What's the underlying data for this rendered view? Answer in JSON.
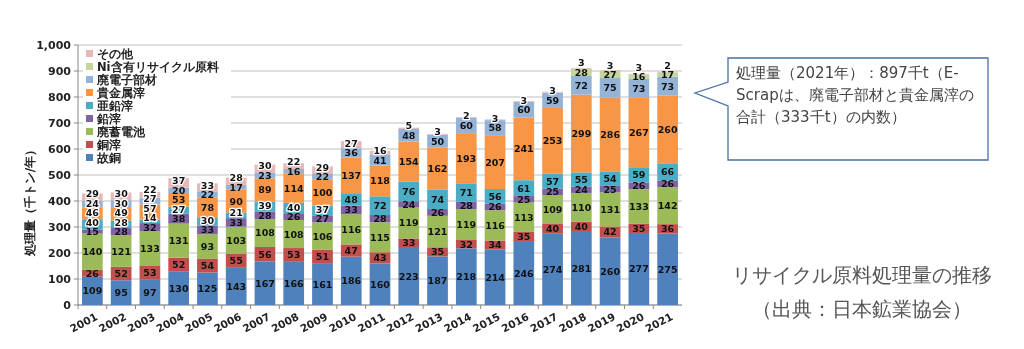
{
  "chart_data": {
    "type": "bar",
    "stacked": true,
    "title": "リサイクル原料処理量の推移",
    "subtitle": "（出典：日本鉱業協会）",
    "ylabel": "処理量（千トン/年）",
    "categories": [
      "2001",
      "2002",
      "2003",
      "2004",
      "2005",
      "2006",
      "2007",
      "2008",
      "2009",
      "2010",
      "2011",
      "2012",
      "2013",
      "2014",
      "2015",
      "2016",
      "2017",
      "2018",
      "2019",
      "2020",
      "2021"
    ],
    "ylim": [
      0,
      1000
    ],
    "yticks": [
      0,
      100,
      200,
      300,
      400,
      500,
      600,
      700,
      800,
      900,
      {
        "value": 1000,
        "label": "1,000"
      }
    ],
    "grid": "y",
    "legend": "top left",
    "data_labels": true,
    "annotations": [
      "処理量（2021年）：897千t（E-Scrapは、廃電子部材と貴金属滓の合計（333千t）の内数）"
    ],
    "series": [
      {
        "name": "故銅",
        "color": "#4f81bd",
        "values": [
          109,
          95,
          97,
          130,
          125,
          143,
          167,
          166,
          161,
          186,
          160,
          223,
          187,
          218,
          214,
          246,
          274,
          281,
          260,
          277,
          275
        ]
      },
      {
        "name": "銅滓",
        "color": "#c0504d",
        "values": [
          26,
          52,
          53,
          52,
          54,
          55,
          56,
          53,
          51,
          47,
          43,
          33,
          35,
          32,
          34,
          35,
          40,
          40,
          42,
          35,
          36
        ]
      },
      {
        "name": "廃蓄電池",
        "color": "#9bbb59",
        "values": [
          140,
          121,
          133,
          131,
          93,
          103,
          108,
          108,
          106,
          116,
          115,
          119,
          121,
          119,
          116,
          113,
          109,
          110,
          131,
          133,
          142
        ]
      },
      {
        "name": "鉛滓",
        "color": "#8064a2",
        "values": [
          15,
          28,
          32,
          38,
          33,
          33,
          28,
          26,
          27,
          33,
          28,
          24,
          26,
          28,
          26,
          25,
          25,
          24,
          25,
          26,
          26
        ]
      },
      {
        "name": "亜鉛滓",
        "color": "#4bacc6",
        "values": [
          40,
          28,
          14,
          27,
          30,
          21,
          39,
          40,
          37,
          48,
          72,
          76,
          74,
          71,
          56,
          61,
          57,
          55,
          54,
          59,
          66
        ]
      },
      {
        "name": "貴金属滓",
        "color": "#f79646",
        "values": [
          46,
          49,
          57,
          53,
          78,
          90,
          89,
          114,
          100,
          137,
          118,
          154,
          162,
          193,
          207,
          241,
          253,
          299,
          286,
          267,
          260
        ]
      },
      {
        "name": "廃電子部材",
        "color": "#95b3d7",
        "values": [
          24,
          30,
          27,
          20,
          22,
          17,
          23,
          16,
          22,
          36,
          41,
          48,
          50,
          60,
          58,
          60,
          59,
          72,
          75,
          73,
          73
        ]
      },
      {
        "name": "Ni含有リサイクル原料",
        "color": "#c3d69b",
        "values": [
          null,
          null,
          null,
          null,
          null,
          null,
          null,
          null,
          null,
          null,
          null,
          null,
          null,
          null,
          null,
          null,
          null,
          28,
          27,
          16,
          17
        ]
      },
      {
        "name": "その他",
        "color": "#e6b9b8",
        "values": [
          29,
          30,
          22,
          37,
          33,
          28,
          30,
          22,
          29,
          27,
          16,
          5,
          3,
          2,
          3,
          3,
          3,
          3,
          3,
          3,
          2
        ]
      }
    ]
  }
}
